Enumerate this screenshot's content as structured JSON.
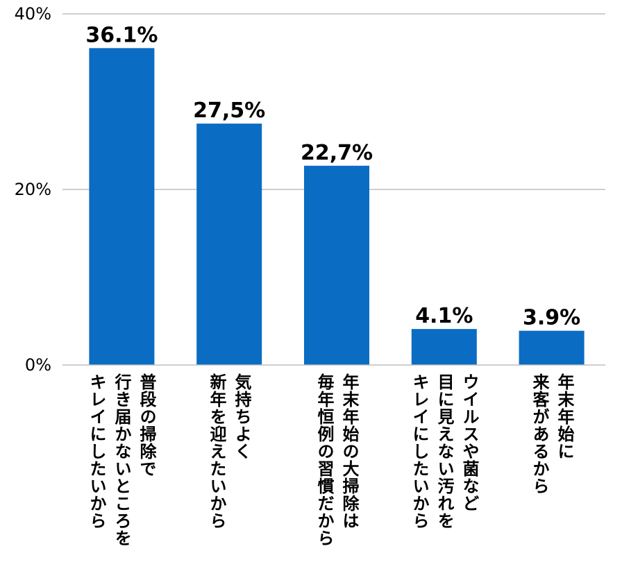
{
  "chart_data": {
    "type": "bar",
    "categories": [
      [
        "普段の掃除で",
        "行き届かないところを",
        "キレイにしたいから"
      ],
      [
        "気持ちよく",
        "新年を迎えたいから"
      ],
      [
        "年末年始の大掃除は",
        "毎年恒例の習慣だから"
      ],
      [
        "ウイルスや菌など",
        "目に見えない汚れを",
        "キレイにしたいから"
      ],
      [
        "年末年始に",
        "来客があるから"
      ]
    ],
    "values": [
      36.1,
      27.5,
      22.7,
      4.1,
      3.9
    ],
    "data_labels": [
      "36.1%",
      "27,5%",
      "22,7%",
      "4.1%",
      "3.9%"
    ],
    "yticks": [
      "0%",
      "20%",
      "40%"
    ],
    "ylim": [
      0,
      40
    ],
    "grid": true,
    "bar_color": "#0A6CC2"
  }
}
